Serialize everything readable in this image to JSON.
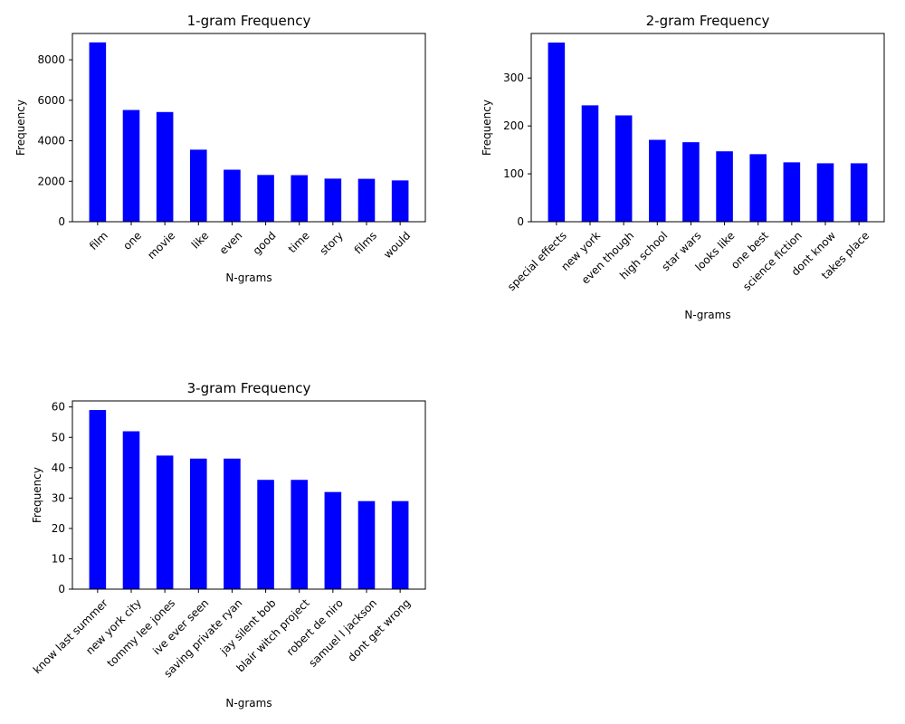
{
  "colors": {
    "bar": "#0000ff",
    "axis": "#000000",
    "background": "#ffffff"
  },
  "chart_data": [
    {
      "type": "bar",
      "title": "1-gram Frequency",
      "xlabel": "N-grams",
      "ylabel": "Frequency",
      "ylim": [
        0,
        9300
      ],
      "yticks": [
        0,
        2000,
        4000,
        6000,
        8000
      ],
      "grid": false,
      "categories": [
        "film",
        "one",
        "movie",
        "like",
        "even",
        "good",
        "time",
        "story",
        "films",
        "would"
      ],
      "values": [
        8860,
        5520,
        5420,
        3560,
        2570,
        2310,
        2300,
        2130,
        2120,
        2040
      ]
    },
    {
      "type": "bar",
      "title": "2-gram Frequency",
      "xlabel": "N-grams",
      "ylabel": "Frequency",
      "ylim": [
        0,
        393
      ],
      "yticks": [
        0,
        100,
        200,
        300
      ],
      "grid": false,
      "categories": [
        "special effects",
        "new york",
        "even though",
        "high school",
        "star wars",
        "looks like",
        "one best",
        "science fiction",
        "dont know",
        "takes place"
      ],
      "values": [
        374,
        243,
        222,
        171,
        166,
        147,
        141,
        124,
        122,
        122
      ]
    },
    {
      "type": "bar",
      "title": "3-gram Frequency",
      "xlabel": "N-grams",
      "ylabel": "Frequency",
      "ylim": [
        0,
        62
      ],
      "yticks": [
        0,
        10,
        20,
        30,
        40,
        50,
        60
      ],
      "grid": false,
      "categories": [
        "know last summer",
        "new york city",
        "tommy lee jones",
        "ive ever seen",
        "saving private ryan",
        "jay silent bob",
        "blair witch project",
        "robert de niro",
        "samuel l jackson",
        "dont get wrong"
      ],
      "values": [
        59,
        52,
        44,
        43,
        43,
        36,
        36,
        32,
        29,
        29
      ]
    }
  ]
}
